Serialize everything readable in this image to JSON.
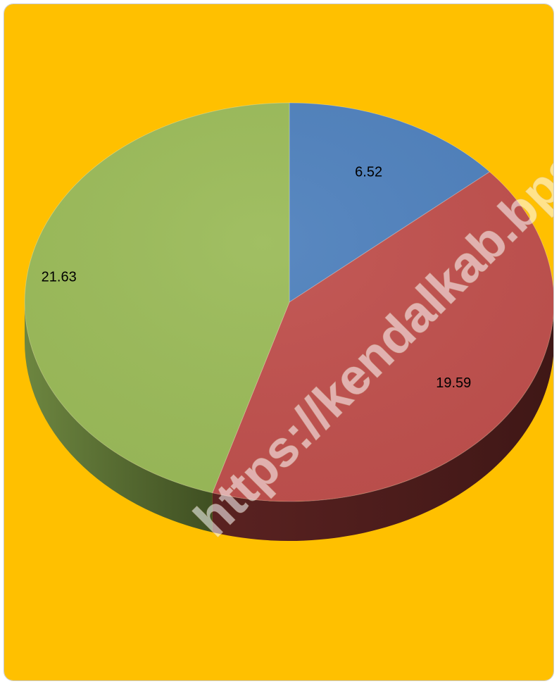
{
  "chart_data": {
    "type": "pie",
    "values": [
      6.52,
      19.59,
      21.63
    ],
    "data_labels": [
      "6.52",
      "19.59",
      "21.63"
    ],
    "colors": [
      "#4f81bd",
      "#c0504d",
      "#9bbb59"
    ],
    "dark_colors": [
      "#2f4e73",
      "#4e1f1f",
      "#4d5e2c"
    ],
    "title": "",
    "legend": "none",
    "style": "3d"
  },
  "page": {
    "background": "#ffc000",
    "watermark": "https://kendalkab.bps.go.id"
  }
}
